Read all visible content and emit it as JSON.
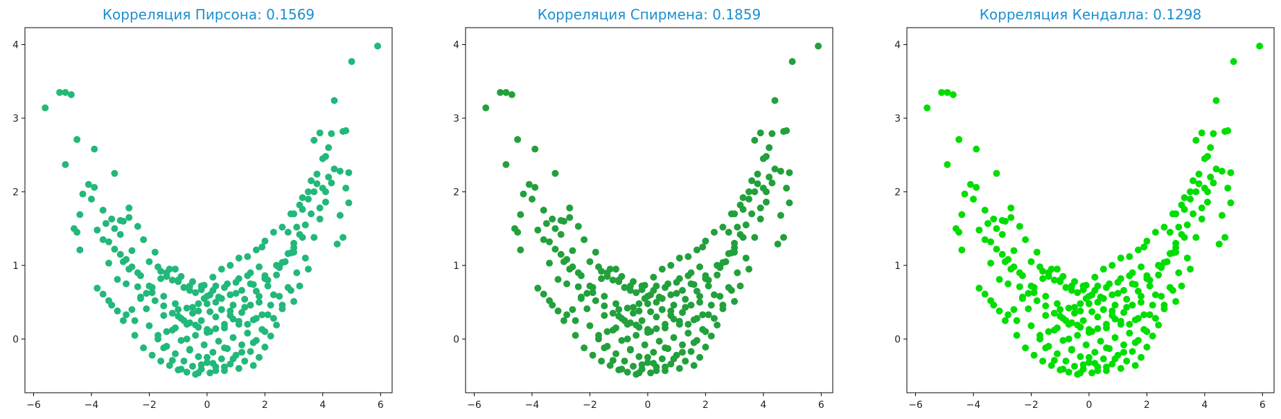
{
  "chart_data": [
    {
      "type": "scatter",
      "title": "Корреляция Пирсона: 0.1569",
      "title_color": "#1b8fd1",
      "point_color": "#22b87a",
      "xlim": [
        -6.3,
        6.4
      ],
      "ylim": [
        -0.73,
        4.23
      ],
      "xticks": [
        -6,
        -4,
        -2,
        0,
        2,
        4,
        6
      ],
      "yticks": [
        0,
        1,
        2,
        3,
        4
      ],
      "grid": false,
      "series": [
        {
          "x": [],
          "y": []
        }
      ]
    },
    {
      "type": "scatter",
      "title": "Корреляция Спирмена: 0.1859",
      "title_color": "#1b8fd1",
      "point_color": "#22a03c",
      "xlim": [
        -6.3,
        6.4
      ],
      "ylim": [
        -0.73,
        4.23
      ],
      "xticks": [
        -6,
        -4,
        -2,
        0,
        2,
        4,
        6
      ],
      "yticks": [
        0,
        1,
        2,
        3,
        4
      ],
      "grid": false,
      "series": [
        {
          "x": [],
          "y": []
        }
      ]
    },
    {
      "type": "scatter",
      "title": "Корреляция Кендалла: 0.1298",
      "title_color": "#1b8fd1",
      "point_color": "#00dd00",
      "xlim": [
        -6.3,
        6.4
      ],
      "ylim": [
        -0.73,
        4.23
      ],
      "xticks": [
        -6,
        -4,
        -2,
        0,
        2,
        4,
        6
      ],
      "yticks": [
        0,
        1,
        2,
        3,
        4
      ],
      "grid": false,
      "series": [
        {
          "x": [],
          "y": []
        }
      ]
    }
  ],
  "shared_points": {
    "x": [
      -5.6,
      -5.1,
      -4.9,
      -4.7,
      -4.9,
      -4.5,
      -3.9,
      -4.1,
      -4.3,
      -4.4,
      -4.6,
      -4.5,
      -4.4,
      -3.4,
      -3.2,
      -4.0,
      -3.9,
      -3.6,
      -3.3,
      -3.0,
      -2.7,
      -3.5,
      -3.0,
      -2.4,
      -2.2,
      -1.8,
      -2.6,
      -2.9,
      -3.8,
      -3.4,
      -3.1,
      -2.8,
      -2.5,
      -3.3,
      -3.6,
      -2.0,
      -1.4,
      -1.1,
      -1.7,
      -0.8,
      -2.3,
      -2.1,
      -1.0,
      -0.4,
      0.0,
      -0.7,
      -1.5,
      -1.2,
      -0.9,
      -0.3,
      0.3,
      0.6,
      0.9,
      1.2,
      1.6,
      2.0,
      2.3,
      2.6,
      2.9,
      3.1,
      3.4,
      3.7,
      3.9,
      4.1,
      4.3,
      4.4,
      4.6,
      4.8,
      4.9,
      4.1,
      3.8,
      3.6,
      3.3,
      3.0,
      2.8,
      4.5,
      4.7,
      3.5,
      3.2,
      2.5,
      2.2,
      1.9,
      4.2,
      4.0,
      3.7,
      3.9,
      4.6,
      4.4,
      4.3,
      5.0,
      5.9,
      4.1,
      3.9,
      4.7,
      4.8,
      4.9,
      3.0,
      -2.9,
      -2.6,
      -2.3,
      -1.9,
      -1.6,
      -1.3,
      -1.0,
      -0.6,
      -0.2,
      0.2,
      0.5,
      0.8,
      1.1,
      1.4,
      1.7,
      2.0,
      2.3,
      2.6,
      2.9,
      3.2,
      3.5,
      3.8,
      -2.5,
      -2.0,
      -1.5,
      -1.0,
      -0.5,
      0.0,
      0.5,
      1.0,
      1.5,
      2.0,
      2.5,
      3.0,
      -2.2,
      -1.7,
      -1.2,
      -0.7,
      -0.2,
      0.3,
      0.8,
      1.3,
      1.8,
      2.3,
      2.8,
      -1.9,
      -1.4,
      -0.9,
      -0.4,
      0.1,
      0.6,
      1.1,
      1.6,
      2.1,
      2.6,
      -1.6,
      -1.1,
      -0.6,
      -0.1,
      0.4,
      0.9,
      1.4,
      1.9,
      2.4,
      -1.3,
      -0.8,
      -0.3,
      0.2,
      0.7,
      1.2,
      1.7,
      2.2,
      -1.0,
      -0.5,
      0.0,
      0.5,
      1.0,
      1.5,
      2.0,
      -0.7,
      -0.2,
      0.3,
      0.8,
      1.3,
      1.8,
      -0.4,
      0.1,
      0.6,
      1.1,
      1.6,
      -3.1,
      -2.8,
      -2.4,
      -2.1,
      -1.8,
      -1.5,
      -1.2,
      -0.9,
      -0.6,
      -0.3,
      0.0,
      0.3,
      0.6,
      0.9,
      1.2,
      1.5,
      1.8,
      2.1,
      2.4,
      2.7,
      3.0,
      -2.7,
      -2.3,
      -1.9,
      -1.5,
      -1.1,
      -0.7,
      -0.3,
      0.1,
      0.5,
      0.9,
      1.3,
      1.7,
      2.1,
      2.5,
      2.9,
      3.3,
      -2.0,
      -1.6,
      -1.2,
      -0.8,
      -0.4,
      0.0,
      0.4,
      0.8,
      1.2,
      1.6,
      2.0,
      2.4,
      -1.4,
      -1.0,
      -0.6,
      -0.2,
      0.2,
      0.6,
      1.0,
      1.4,
      1.8,
      -0.9,
      -0.5,
      -0.1,
      0.3,
      0.7,
      1.1,
      1.5,
      -3.4,
      -3.2,
      -3.8,
      -3.6,
      -3.0,
      -2.8,
      -2.6,
      -2.4,
      3.6,
      3.4,
      3.2,
      3.0,
      2.8,
      2.6,
      4.0,
      4.2,
      -0.1,
      0.1,
      -0.3,
      0.3,
      -0.5,
      0.5,
      -0.8,
      0.8,
      -1.1,
      1.1,
      -1.4,
      1.4,
      -1.7,
      1.7,
      -0.2,
      0.2,
      0.0,
      -0.6,
      0.6,
      1.9,
      -2.9,
      -3.2,
      -2.7,
      3.1,
      3.3,
      3.5,
      3.7
    ],
    "y": [
      3.14,
      3.35,
      3.35,
      3.32,
      2.37,
      2.71,
      2.58,
      2.1,
      1.97,
      1.69,
      1.5,
      1.45,
      1.21,
      1.03,
      2.25,
      1.9,
      2.06,
      1.75,
      1.63,
      1.42,
      1.78,
      1.57,
      1.61,
      1.53,
      1.35,
      1.18,
      1.2,
      1.05,
      0.69,
      0.52,
      0.38,
      0.33,
      0.25,
      0.46,
      0.61,
      0.72,
      0.85,
      0.95,
      0.98,
      0.7,
      0.55,
      0.41,
      0.31,
      0.19,
      0.09,
      0.0,
      -0.12,
      -0.29,
      -0.41,
      -0.46,
      -0.43,
      -0.38,
      -0.27,
      -0.18,
      -0.05,
      0.1,
      0.28,
      0.46,
      0.66,
      0.9,
      1.1,
      1.38,
      1.63,
      1.86,
      2.12,
      2.31,
      2.28,
      2.05,
      1.85,
      2.48,
      2.24,
      2.15,
      1.92,
      1.7,
      1.45,
      1.29,
      1.38,
      0.95,
      0.72,
      0.58,
      0.46,
      0.33,
      2.6,
      2.45,
      2.7,
      2.8,
      1.68,
      3.24,
      2.79,
      3.77,
      3.98,
      2.0,
      1.78,
      2.82,
      2.83,
      2.26,
      0.51,
      0.25,
      0.4,
      0.57,
      0.63,
      0.82,
      0.95,
      0.78,
      0.66,
      0.72,
      0.84,
      0.95,
      1.0,
      1.1,
      1.12,
      1.21,
      1.33,
      1.45,
      1.52,
      1.7,
      1.82,
      2.0,
      2.11,
      0.05,
      0.18,
      0.32,
      0.4,
      0.43,
      0.48,
      0.55,
      0.62,
      0.75,
      0.82,
      0.98,
      1.18,
      -0.12,
      0.0,
      0.12,
      0.2,
      0.25,
      0.3,
      0.38,
      0.43,
      0.5,
      0.6,
      0.7,
      -0.22,
      -0.1,
      -0.02,
      0.05,
      0.1,
      0.15,
      0.2,
      0.26,
      0.33,
      0.41,
      -0.3,
      -0.2,
      -0.14,
      -0.08,
      -0.03,
      0.02,
      0.08,
      0.13,
      0.19,
      -0.36,
      -0.3,
      -0.24,
      -0.18,
      -0.13,
      -0.08,
      -0.02,
      0.04,
      -0.42,
      -0.37,
      -0.32,
      -0.27,
      -0.22,
      -0.17,
      -0.11,
      -0.45,
      -0.41,
      -0.38,
      -0.34,
      -0.3,
      -0.25,
      -0.48,
      -0.46,
      -0.43,
      -0.4,
      -0.36,
      0.81,
      0.75,
      0.71,
      0.62,
      0.52,
      0.45,
      0.35,
      0.28,
      0.22,
      0.16,
      0.13,
      0.14,
      0.2,
      0.27,
      0.36,
      0.46,
      0.58,
      0.72,
      0.87,
      1.05,
      1.24,
      0.95,
      0.86,
      0.7,
      0.58,
      0.48,
      0.42,
      0.38,
      0.37,
      0.4,
      0.46,
      0.54,
      0.65,
      0.8,
      0.97,
      1.17,
      1.38,
      1.05,
      0.92,
      0.8,
      0.7,
      0.63,
      0.58,
      0.57,
      0.6,
      0.66,
      0.74,
      0.86,
      1.0,
      0.9,
      0.8,
      0.72,
      0.67,
      0.66,
      0.7,
      0.77,
      0.86,
      0.98,
      0.85,
      0.78,
      0.73,
      0.72,
      0.75,
      0.82,
      0.9,
      1.32,
      1.22,
      1.48,
      1.35,
      1.15,
      1.08,
      0.98,
      0.9,
      1.7,
      1.55,
      1.42,
      1.3,
      1.16,
      1.04,
      2.05,
      2.2,
      0.55,
      0.6,
      0.48,
      0.5,
      0.35,
      0.4,
      0.25,
      0.32,
      0.15,
      0.24,
      0.1,
      0.2,
      0.05,
      0.28,
      -0.35,
      -0.33,
      -0.25,
      -0.15,
      -0.12,
      1.25,
      1.6,
      1.5,
      1.65,
      1.52,
      1.76,
      1.9,
      2.0
    ]
  }
}
